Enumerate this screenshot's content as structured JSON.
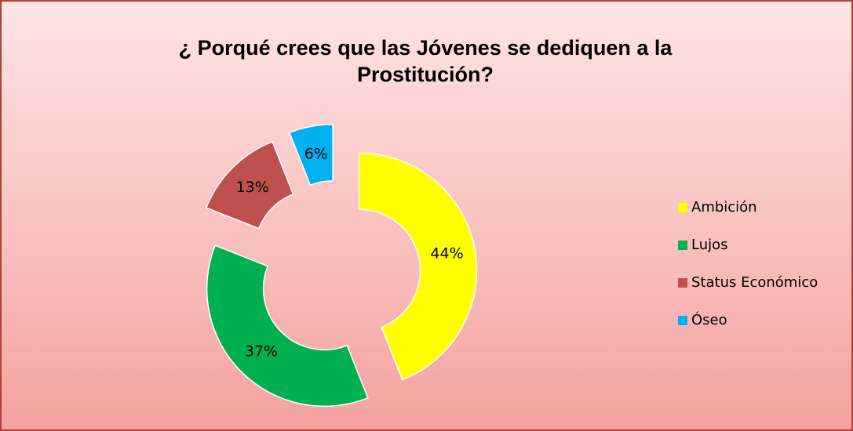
{
  "chart_data": {
    "type": "doughnut",
    "title": "¿ Porqué crees que las Jóvenes se dediquen a la Prostitución?",
    "categories": [
      "Ambición",
      "Lujos",
      "Status Económico",
      "Óseo"
    ],
    "values": [
      44,
      37,
      13,
      6
    ],
    "value_labels": [
      "44%",
      "37%",
      "13%",
      "6%"
    ],
    "colors": [
      "#ffff00",
      "#00b050",
      "#c0504d",
      "#00b0f0"
    ],
    "legend": "right"
  }
}
